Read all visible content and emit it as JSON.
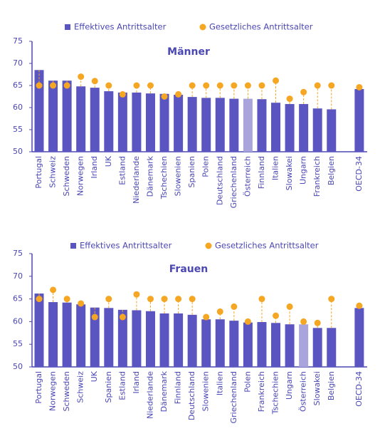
{
  "chart_data": [
    {
      "type": "bar",
      "title": "Männer",
      "categories": [
        "Portugal",
        "Schweiz",
        "Schweden",
        "Norwegen",
        "Irland",
        "UK",
        "Estland",
        "Niederlande",
        "Dänemark",
        "Tschechien",
        "Slowenien",
        "Spanien",
        "Polen",
        "Deutschland",
        "Griechenland",
        "Österreich",
        "Finnland",
        "Italien",
        "Slowakei",
        "Ungarn",
        "Frankreich",
        "Belgien",
        null,
        "OECD-34"
      ],
      "series": [
        {
          "name": "Effektives Antrittsalter",
          "style": "bar",
          "color": "#5a55c0",
          "colors": [
            "#5a55c0",
            "#5a55c0",
            "#5a55c0",
            "#5a55c0",
            "#5a55c0",
            "#5a55c0",
            "#5a55c0",
            "#5a55c0",
            "#5a55c0",
            "#5a55c0",
            "#5a55c0",
            "#5a55c0",
            "#5a55c0",
            "#5a55c0",
            "#5a55c0",
            "#a9a5dc",
            "#5a55c0",
            "#5a55c0",
            "#5a55c0",
            "#5a55c0",
            "#5a55c0",
            "#5a55c0",
            "#5a55c0",
            "#5a55c0"
          ],
          "values": [
            68.5,
            66.1,
            66.1,
            64.8,
            64.5,
            63.7,
            63.4,
            63.4,
            63.2,
            63.1,
            62.9,
            62.4,
            62.2,
            62.2,
            62.0,
            62.0,
            61.9,
            61.1,
            60.8,
            60.8,
            59.8,
            59.6,
            null,
            64.2
          ]
        },
        {
          "name": "Gesetzliches Antrittsalter",
          "style": "dot",
          "color": "#f5a623",
          "values": [
            65,
            65,
            65,
            67,
            66,
            65,
            63,
            65,
            65,
            62.5,
            63,
            65,
            65,
            65,
            65,
            65,
            65,
            66.1,
            62,
            63.5,
            65,
            65,
            null,
            64.6
          ]
        }
      ],
      "ylim": [
        50,
        75
      ],
      "yticks": [
        50,
        55,
        60,
        65,
        70,
        75
      ]
    },
    {
      "type": "bar",
      "title": "Frauen",
      "categories": [
        "Portugal",
        "Norwegen",
        "Schweden",
        "Schweiz",
        "UK",
        "Spanien",
        "Estland",
        "Irland",
        "Niederlande",
        "Dänemark",
        "Finnland",
        "Deutschland",
        "Slowenien",
        "Italien",
        "Griechenland",
        "Polen",
        "Frankreich",
        "Tschechien",
        "Ungarn",
        "Österreich",
        "Slowakei",
        "Belgien",
        null,
        "OECD-34"
      ],
      "series": [
        {
          "name": "Effektives Antrittsalter",
          "style": "bar",
          "color": "#5a55c0",
          "colors": [
            "#5a55c0",
            "#5a55c0",
            "#5a55c0",
            "#5a55c0",
            "#5a55c0",
            "#5a55c0",
            "#5a55c0",
            "#5a55c0",
            "#5a55c0",
            "#5a55c0",
            "#5a55c0",
            "#5a55c0",
            "#5a55c0",
            "#5a55c0",
            "#5a55c0",
            "#5a55c0",
            "#5a55c0",
            "#5a55c0",
            "#5a55c0",
            "#a9a5dc",
            "#5a55c0",
            "#5a55c0",
            "#5a55c0",
            "#5a55c0"
          ],
          "values": [
            66.2,
            64.3,
            64.2,
            63.8,
            63.1,
            63.0,
            62.6,
            62.5,
            62.3,
            61.8,
            61.8,
            61.5,
            60.5,
            60.5,
            60.2,
            59.8,
            59.9,
            59.7,
            59.4,
            59.4,
            58.6,
            58.6,
            null,
            63.0
          ]
        },
        {
          "name": "Gesetzliches Antrittsalter",
          "style": "dot",
          "color": "#f5a623",
          "values": [
            65,
            67,
            65,
            64,
            61,
            65,
            61,
            66,
            65,
            65,
            65,
            65,
            61,
            62.2,
            63.3,
            60,
            65,
            61.3,
            63.3,
            60,
            59.7,
            65,
            null,
            63.5
          ]
        }
      ],
      "ylim": [
        50,
        75
      ],
      "yticks": [
        50,
        55,
        60,
        65,
        70,
        75
      ]
    }
  ]
}
